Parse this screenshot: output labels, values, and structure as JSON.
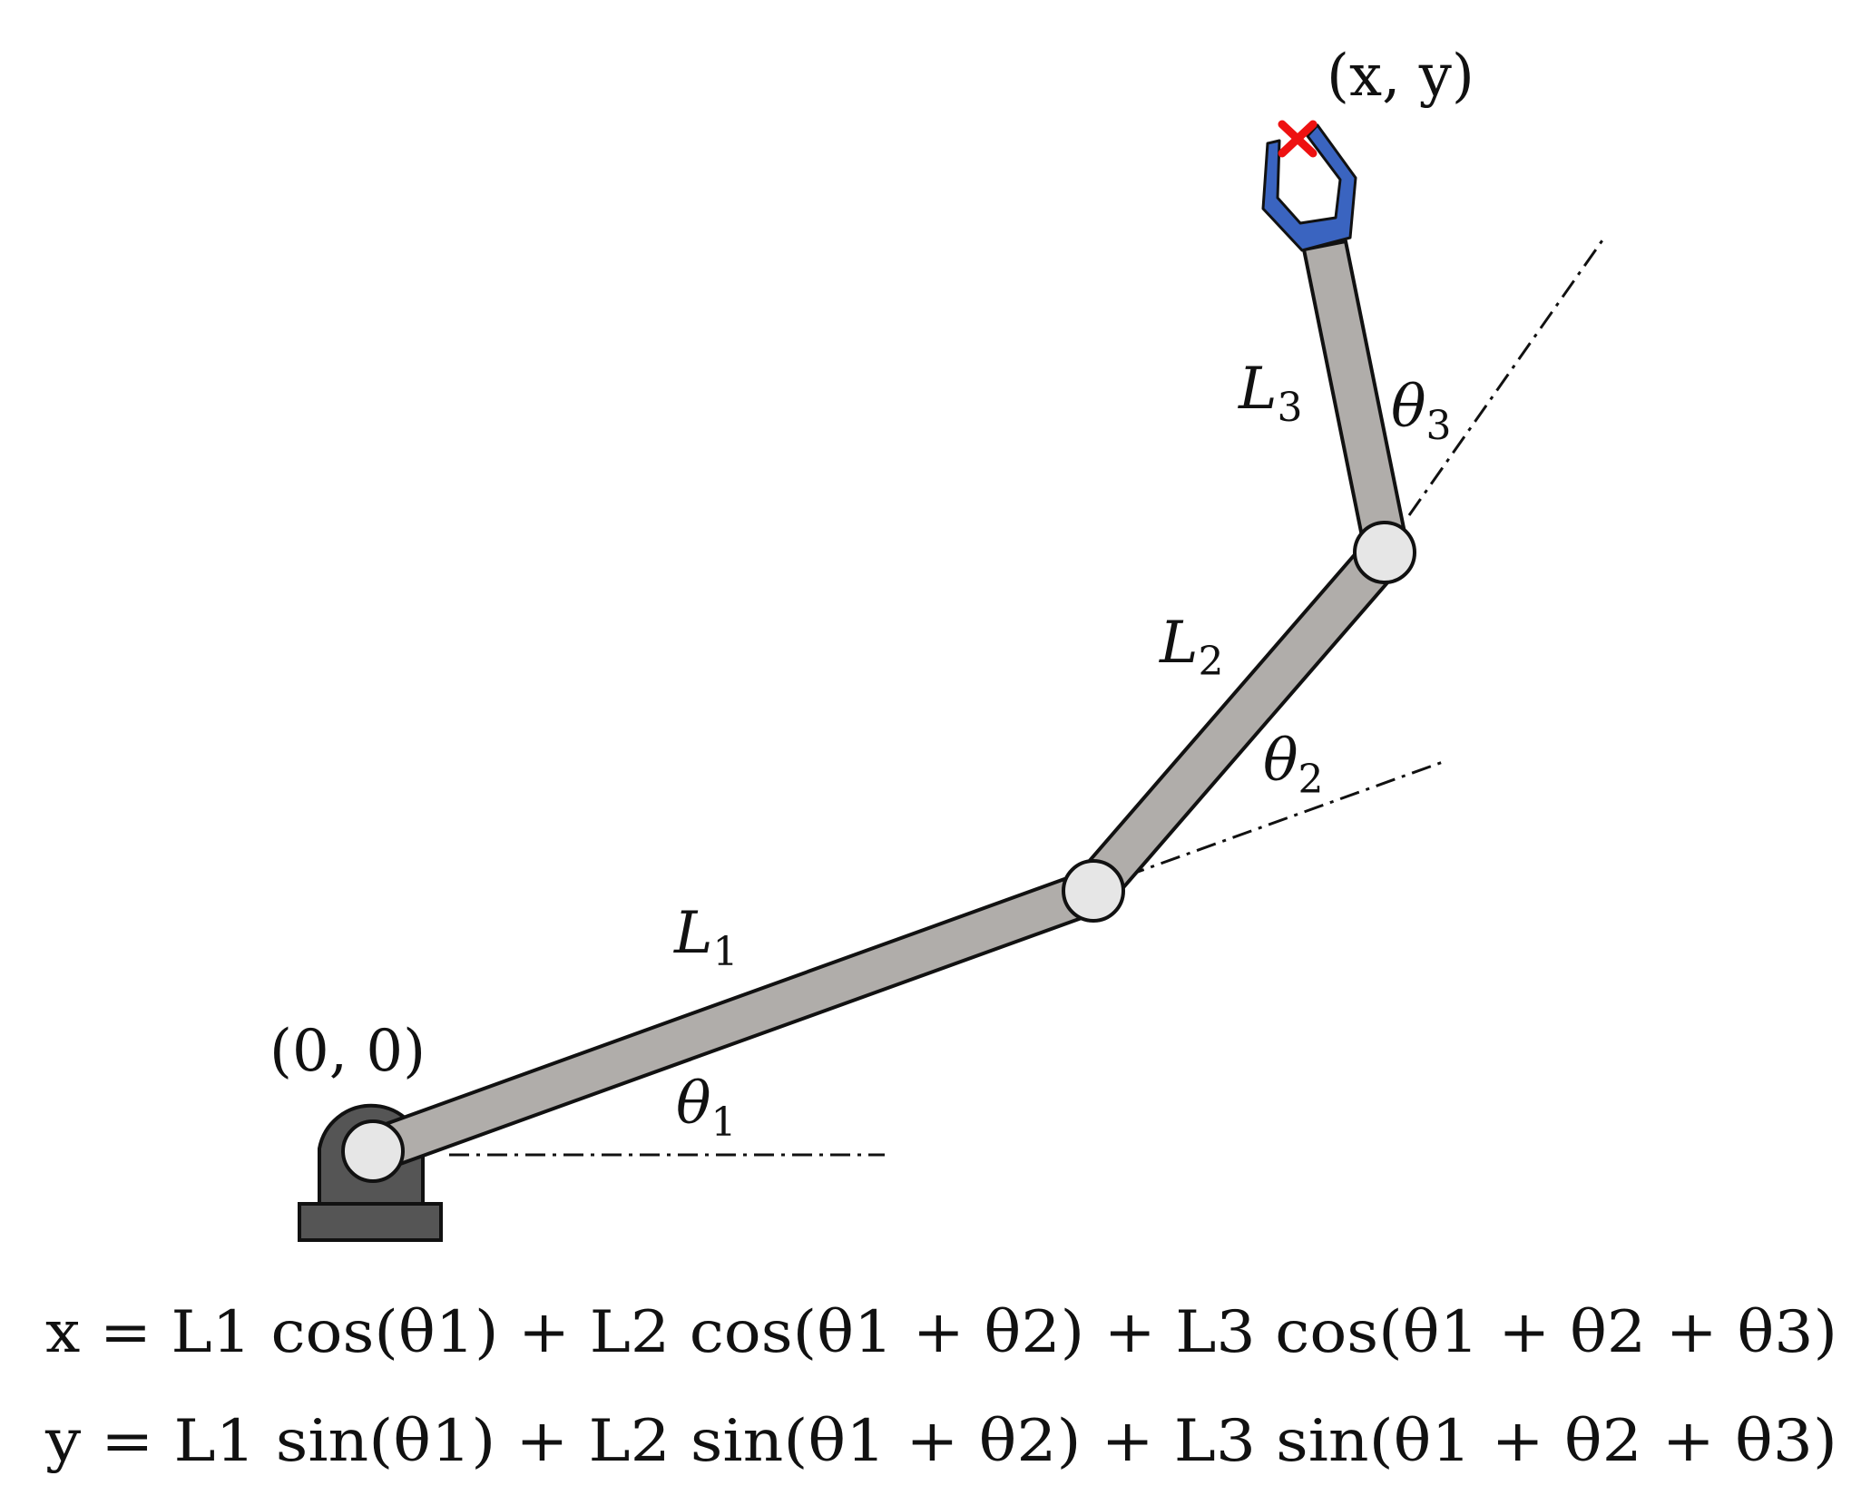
{
  "labels": {
    "origin": "(0, 0)",
    "end_effector": "(x, y)",
    "link1": {
      "name": "L",
      "sub": "1"
    },
    "link2": {
      "name": "L",
      "sub": "2"
    },
    "link3": {
      "name": "L",
      "sub": "3"
    },
    "angle1": {
      "name": "θ",
      "sub": "1"
    },
    "angle2": {
      "name": "θ",
      "sub": "2"
    },
    "angle3": {
      "name": "θ",
      "sub": "3"
    }
  },
  "equations": {
    "x": "x = L1 cos(θ1) + L2 cos(θ1 + θ2) + L3 cos(θ1 + θ2 + θ3)",
    "y": "y = L1 sin(θ1) + L2  sin(θ1 + θ2) + L3 sin(θ1 + θ2 + θ3)"
  },
  "colors": {
    "link_fill": "#b0adaa",
    "joint_fill": "#e6e6e6",
    "base_fill": "#555555",
    "gripper_fill": "#3a64c0",
    "target_marker": "#ee1111"
  }
}
